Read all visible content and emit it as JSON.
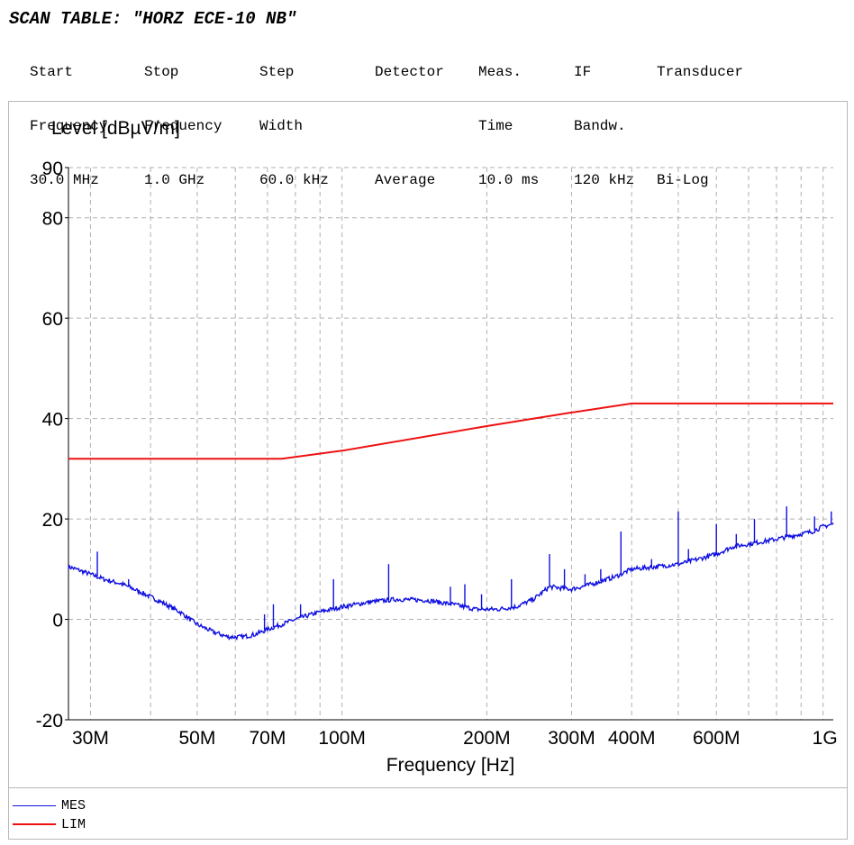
{
  "scan_title": "SCAN TABLE: \"HORZ ECE-10 NB\"",
  "scan_table": {
    "columns": [
      {
        "header1": "Start",
        "header2": "Frequency",
        "value": "30.0 MHz"
      },
      {
        "header1": "Stop",
        "header2": "Frequency",
        "value": "1.0 GHz"
      },
      {
        "header1": "Step",
        "header2": "Width",
        "value": "60.0 kHz"
      },
      {
        "header1": "Detector",
        "header2": "",
        "value": "Average"
      },
      {
        "header1": "Meas.",
        "header2": "Time",
        "value": "10.0 ms"
      },
      {
        "header1": "IF",
        "header2": "Bandw.",
        "value": "120 kHz"
      },
      {
        "header1": "Transducer",
        "header2": "",
        "value": "Bi-Log"
      }
    ]
  },
  "chart_data": {
    "type": "line",
    "ylabel": "Level [dBµV/m]",
    "xlabel": "Frequency [Hz]",
    "x_scale": "log",
    "xlim": [
      27000000,
      1050000000
    ],
    "ylim": [
      -20,
      90
    ],
    "y_ticks": [
      -20,
      0,
      20,
      40,
      60,
      80,
      90
    ],
    "x_ticks": [
      {
        "value": 30000000,
        "label": "30M"
      },
      {
        "value": 50000000,
        "label": "50M"
      },
      {
        "value": 70000000,
        "label": "70M"
      },
      {
        "value": 100000000,
        "label": "100M"
      },
      {
        "value": 200000000,
        "label": "200M"
      },
      {
        "value": 300000000,
        "label": "300M"
      },
      {
        "value": 400000000,
        "label": "400M"
      },
      {
        "value": 600000000,
        "label": "600M"
      },
      {
        "value": 1000000000,
        "label": "1G"
      }
    ],
    "x_grid": [
      30000000,
      40000000,
      50000000,
      60000000,
      70000000,
      80000000,
      90000000,
      100000000,
      200000000,
      300000000,
      400000000,
      500000000,
      600000000,
      700000000,
      800000000,
      900000000,
      1000000000
    ],
    "grid": true,
    "legend_position": "bottom-left",
    "series": [
      {
        "name": "MES",
        "color": "#1010e0",
        "x": [
          27000000,
          28000000,
          30000000,
          32000000,
          35000000,
          38000000,
          42000000,
          46000000,
          50000000,
          54000000,
          58000000,
          62000000,
          66000000,
          70000000,
          75000000,
          80000000,
          90000000,
          100000000,
          115000000,
          130000000,
          150000000,
          170000000,
          190000000,
          210000000,
          230000000,
          250000000,
          270000000,
          300000000,
          330000000,
          370000000,
          400000000,
          450000000,
          500000000,
          550000000,
          600000000,
          650000000,
          700000000,
          750000000,
          800000000,
          850000000,
          900000000,
          950000000,
          1000000000,
          1050000000
        ],
        "y": [
          10.5,
          10,
          9,
          8,
          7,
          5.5,
          3.5,
          1.5,
          -1,
          -2.5,
          -3.5,
          -3.5,
          -3,
          -2,
          -1,
          0,
          1.5,
          2.5,
          3.5,
          4,
          3.8,
          3,
          2,
          2,
          2.5,
          4,
          6.5,
          6,
          7,
          8.5,
          10,
          10.5,
          11,
          12,
          13,
          14.5,
          15,
          15.5,
          16,
          16.5,
          17,
          17.5,
          18.5,
          19
        ],
        "spikes": [
          {
            "x": 31000000,
            "y": 13.5
          },
          {
            "x": 36000000,
            "y": 8
          },
          {
            "x": 69000000,
            "y": 1
          },
          {
            "x": 72000000,
            "y": 3
          },
          {
            "x": 82000000,
            "y": 3
          },
          {
            "x": 96000000,
            "y": 8
          },
          {
            "x": 125000000,
            "y": 11
          },
          {
            "x": 168000000,
            "y": 6.5
          },
          {
            "x": 180000000,
            "y": 7
          },
          {
            "x": 195000000,
            "y": 5
          },
          {
            "x": 225000000,
            "y": 8
          },
          {
            "x": 270000000,
            "y": 13
          },
          {
            "x": 290000000,
            "y": 10
          },
          {
            "x": 320000000,
            "y": 9
          },
          {
            "x": 345000000,
            "y": 10
          },
          {
            "x": 380000000,
            "y": 17.5
          },
          {
            "x": 440000000,
            "y": 12
          },
          {
            "x": 500000000,
            "y": 21.5
          },
          {
            "x": 525000000,
            "y": 14
          },
          {
            "x": 600000000,
            "y": 19
          },
          {
            "x": 660000000,
            "y": 17
          },
          {
            "x": 720000000,
            "y": 20
          },
          {
            "x": 840000000,
            "y": 22.5
          },
          {
            "x": 960000000,
            "y": 20.5
          },
          {
            "x": 1040000000,
            "y": 21.5
          }
        ]
      },
      {
        "name": "LIM",
        "color": "#ee1111",
        "x": [
          27000000,
          30000000,
          75000000,
          100000000,
          200000000,
          300000000,
          400000000,
          1000000000,
          1050000000
        ],
        "y": [
          32,
          32,
          32,
          33.6,
          38.5,
          41.2,
          43,
          43,
          43
        ]
      }
    ]
  }
}
